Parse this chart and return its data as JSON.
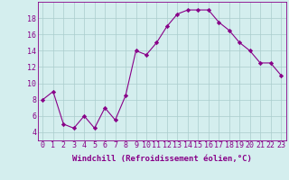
{
  "x": [
    0,
    1,
    2,
    3,
    4,
    5,
    6,
    7,
    8,
    9,
    10,
    11,
    12,
    13,
    14,
    15,
    16,
    17,
    18,
    19,
    20,
    21,
    22,
    23
  ],
  "y": [
    8,
    9,
    5,
    4.5,
    6,
    4.5,
    7,
    5.5,
    8.5,
    14,
    13.5,
    15,
    17,
    18.5,
    19,
    19,
    19,
    17.5,
    16.5,
    15,
    14,
    12.5,
    12.5,
    11
  ],
  "line_color": "#880088",
  "marker": "D",
  "marker_size": 2.2,
  "bg_color": "#d4eeee",
  "grid_color": "#aacccc",
  "xlabel": "Windchill (Refroidissement éolien,°C)",
  "xlabel_fontsize": 6.5,
  "tick_fontsize": 6,
  "ylim": [
    3,
    20
  ],
  "yticks": [
    4,
    6,
    8,
    10,
    12,
    14,
    16,
    18
  ],
  "xticks": [
    0,
    1,
    2,
    3,
    4,
    5,
    6,
    7,
    8,
    9,
    10,
    11,
    12,
    13,
    14,
    15,
    16,
    17,
    18,
    19,
    20,
    21,
    22,
    23
  ]
}
